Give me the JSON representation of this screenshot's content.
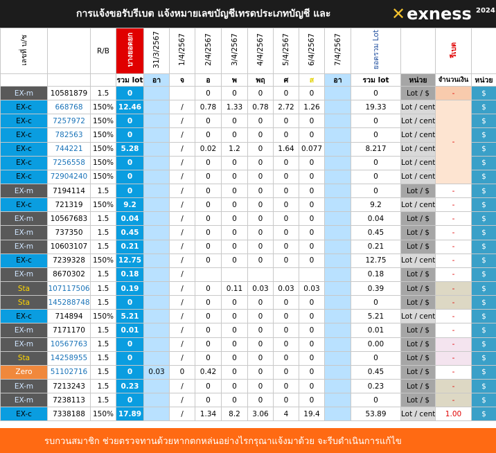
{
  "banner": {
    "title": "การแจ้งขอรับรีเบต  แจ้งหมายเลขบัญชีเทรดประเภทบัญชี และ",
    "logo_mark": "✕",
    "logo_word": "exness",
    "logo_year": "2024"
  },
  "header": {
    "account_col": "เลขที่ บ/ช",
    "rb_col": "R/B",
    "pending_col": "บางยอดยก",
    "dates": [
      "31/3/2567",
      "1/4/2567",
      "2/4/2567",
      "3/4/2567",
      "4/4/2567",
      "5/4/2567",
      "6/4/2567",
      "7/4/2567"
    ],
    "total_lot_col": "ยอดรวม Lot",
    "rebate_col": "รีเบต",
    "sub": {
      "sum_lot": "รวม lot",
      "days": [
        "อา",
        "จ",
        "อ",
        "พ",
        "พฤ",
        "ศ",
        "ส",
        "อา"
      ],
      "total_sum_lot": "รวม lot",
      "unit": "หน่วย",
      "amount": "จำนวนเงิน",
      "unit2": "หน่วย"
    }
  },
  "rows": [
    {
      "cat": "EX-m",
      "acct": "10581879",
      "rb": "1.5",
      "sum": "0",
      "d": [
        "",
        "",
        "0",
        "0",
        "0",
        "0",
        "0",
        ""
      ],
      "total": "0",
      "unit": "Lot / $",
      "amt": "-",
      "cur": "$"
    },
    {
      "cat": "EX-c",
      "acct": "668768",
      "rb": "150%",
      "sum": "12.46",
      "d": [
        "",
        "/",
        "0.78",
        "1.33",
        "0.78",
        "2.72",
        "1.26",
        ""
      ],
      "total": "19.33",
      "unit": "Lot / cent",
      "amt": "",
      "cur": "$"
    },
    {
      "cat": "EX-c",
      "acct": "7257972",
      "rb": "150%",
      "sum": "0",
      "d": [
        "",
        "/",
        "0",
        "0",
        "0",
        "0",
        "0",
        ""
      ],
      "total": "0",
      "unit": "Lot / cent",
      "amt": "",
      "cur": "$"
    },
    {
      "cat": "EX-c",
      "acct": "782563",
      "rb": "150%",
      "sum": "0",
      "d": [
        "",
        "/",
        "0",
        "0",
        "0",
        "0",
        "0",
        ""
      ],
      "total": "0",
      "unit": "Lot / cent",
      "amt": "",
      "cur": "$"
    },
    {
      "cat": "EX-c",
      "acct": "744221",
      "rb": "150%",
      "sum": "5.28",
      "d": [
        "",
        "/",
        "0.02",
        "1.2",
        "0",
        "1.64",
        "0.077",
        ""
      ],
      "total": "8.217",
      "unit": "Lot / cent",
      "amt": "-",
      "cur": "$"
    },
    {
      "cat": "EX-c",
      "acct": "7256558",
      "rb": "150%",
      "sum": "0",
      "d": [
        "",
        "/",
        "0",
        "0",
        "0",
        "0",
        "0",
        ""
      ],
      "total": "0",
      "unit": "Lot / cent",
      "amt": "",
      "cur": "$"
    },
    {
      "cat": "EX-c",
      "acct": "72904240",
      "rb": "150%",
      "sum": "0",
      "d": [
        "",
        "/",
        "0",
        "0",
        "0",
        "0",
        "0",
        ""
      ],
      "total": "0",
      "unit": "Lot / cent",
      "amt": "",
      "cur": "$"
    },
    {
      "cat": "EX-m",
      "acct": "7194114",
      "rb": "1.5",
      "sum": "0",
      "d": [
        "",
        "/",
        "0",
        "0",
        "0",
        "0",
        "0",
        ""
      ],
      "total": "0",
      "unit": "Lot / $",
      "amt": "-",
      "cur": "$"
    },
    {
      "cat": "EX-c",
      "acct": "721319",
      "rb": "150%",
      "sum": "9.2",
      "d": [
        "",
        "/",
        "0",
        "0",
        "0",
        "0",
        "0",
        ""
      ],
      "total": "9.2",
      "unit": "Lot / cent",
      "amt": "-",
      "cur": "$"
    },
    {
      "cat": "EX-m",
      "acct": "10567683",
      "rb": "1.5",
      "sum": "0.04",
      "d": [
        "",
        "/",
        "0",
        "0",
        "0",
        "0",
        "0",
        ""
      ],
      "total": "0.04",
      "unit": "Lot / $",
      "amt": "-",
      "cur": "$"
    },
    {
      "cat": "EX-m",
      "acct": "737350",
      "rb": "1.5",
      "sum": "0.45",
      "d": [
        "",
        "/",
        "0",
        "0",
        "0",
        "0",
        "0",
        ""
      ],
      "total": "0.45",
      "unit": "Lot / $",
      "amt": "-",
      "cur": "$"
    },
    {
      "cat": "EX-m",
      "acct": "10603107",
      "rb": "1.5",
      "sum": "0.21",
      "d": [
        "",
        "/",
        "0",
        "0",
        "0",
        "0",
        "0",
        ""
      ],
      "total": "0.21",
      "unit": "Lot / $",
      "amt": "-",
      "cur": "$"
    },
    {
      "cat": "EX-c",
      "acct": "7239328",
      "rb": "150%",
      "sum": "12.75",
      "d": [
        "",
        "/",
        "0",
        "0",
        "0",
        "0",
        "0",
        ""
      ],
      "total": "12.75",
      "unit": "Lot / cent",
      "amt": "-",
      "cur": "$"
    },
    {
      "cat": "EX-m",
      "acct": "8670302",
      "rb": "1.5",
      "sum": "0.18",
      "d": [
        "",
        "/",
        "",
        "",
        "",
        "",
        "",
        ""
      ],
      "total": "0.18",
      "unit": "Lot / $",
      "amt": "-",
      "cur": "$"
    },
    {
      "cat": "Sta",
      "acct": "107117506",
      "rb": "1.5",
      "sum": "0.19",
      "d": [
        "",
        "/",
        "0",
        "0.11",
        "0.03",
        "0.03",
        "0.03",
        ""
      ],
      "total": "0.39",
      "unit": "Lot / $",
      "amt": "-",
      "cur": "$"
    },
    {
      "cat": "Sta",
      "acct": "145288748",
      "rb": "1.5",
      "sum": "0",
      "d": [
        "",
        "/",
        "0",
        "0",
        "0",
        "0",
        "0",
        ""
      ],
      "total": "0",
      "unit": "Lot / $",
      "amt": "-",
      "cur": "$"
    },
    {
      "cat": "EX-c",
      "acct": "714894",
      "rb": "150%",
      "sum": "5.21",
      "d": [
        "",
        "/",
        "0",
        "0",
        "0",
        "0",
        "0",
        ""
      ],
      "total": "5.21",
      "unit": "Lot / cent",
      "amt": "-",
      "cur": "$"
    },
    {
      "cat": "EX-m",
      "acct": "7171170",
      "rb": "1.5",
      "sum": "0.01",
      "d": [
        "",
        "/",
        "0",
        "0",
        "0",
        "0",
        "0",
        ""
      ],
      "total": "0.01",
      "unit": "Lot / $",
      "amt": "-",
      "cur": "$"
    },
    {
      "cat": "EX-m",
      "acct": "10567763",
      "rb": "1.5",
      "sum": "0",
      "d": [
        "",
        "/",
        "0",
        "0",
        "0",
        "0",
        "0",
        ""
      ],
      "total": "0.00",
      "unit": "Lot / $",
      "amt": "-",
      "cur": "$"
    },
    {
      "cat": "Sta",
      "acct": "14258955",
      "rb": "1.5",
      "sum": "0",
      "d": [
        "",
        "/",
        "0",
        "0",
        "0",
        "0",
        "0",
        ""
      ],
      "total": "0",
      "unit": "Lot / $",
      "amt": "-",
      "cur": "$"
    },
    {
      "cat": "Zero",
      "acct": "51102716",
      "rb": "1.5",
      "sum": "0",
      "d": [
        "0.03",
        "0",
        "0.42",
        "0",
        "0",
        "0",
        "0",
        ""
      ],
      "total": "0.45",
      "unit": "Lot / $",
      "amt": "-",
      "cur": "$"
    },
    {
      "cat": "EX-m",
      "acct": "7213243",
      "rb": "1.5",
      "sum": "0.23",
      "d": [
        "",
        "/",
        "0",
        "0",
        "0",
        "0",
        "0",
        ""
      ],
      "total": "0.23",
      "unit": "Lot / $",
      "amt": "-",
      "cur": "$"
    },
    {
      "cat": "EX-m",
      "acct": "7238113",
      "rb": "1.5",
      "sum": "0",
      "d": [
        "",
        "/",
        "0",
        "0",
        "0",
        "0",
        "0",
        ""
      ],
      "total": "0",
      "unit": "Lot / $",
      "amt": "-",
      "cur": "$"
    },
    {
      "cat": "EX-c",
      "acct": "7338188",
      "rb": "150%",
      "sum": "17.89",
      "d": [
        "",
        "/",
        "1.34",
        "8.2",
        "3.06",
        "4",
        "19.4",
        ""
      ],
      "total": "53.89",
      "unit": "Lot / cent",
      "amt": "1.00",
      "cur": "$"
    }
  ],
  "footer": {
    "text": "รบกวนสมาชิก ช่วยตรวจทานด้วยหากตกหล่นอย่างไรกรุณาแจ้งมาด้วย จะรีบดำเนินการแก้ไข"
  }
}
